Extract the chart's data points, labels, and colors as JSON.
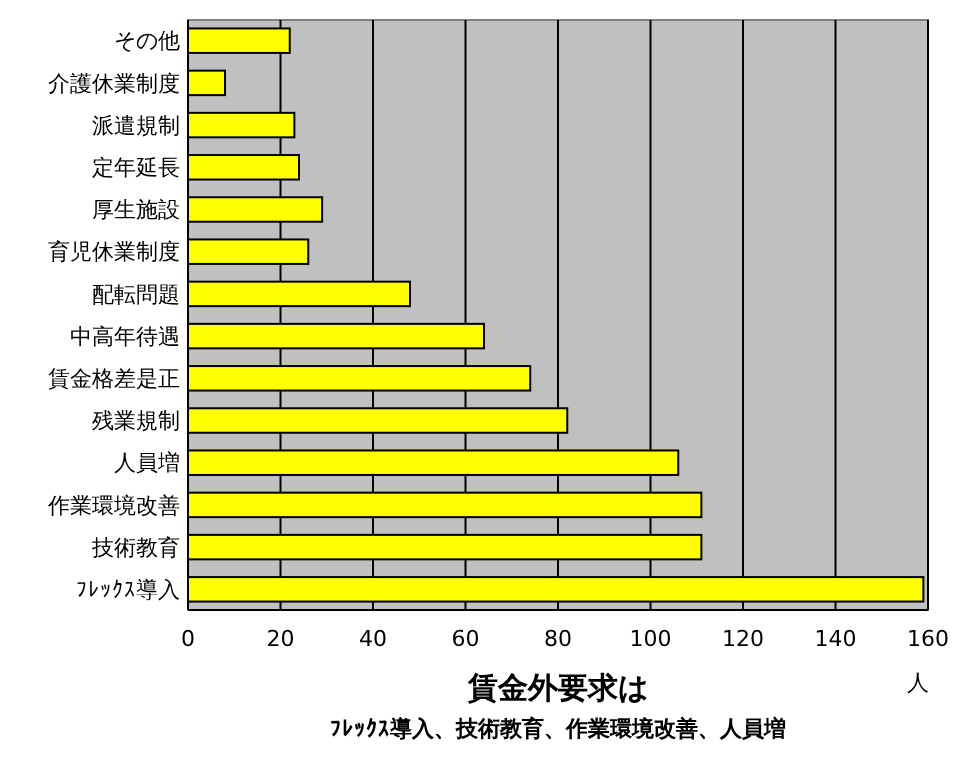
{
  "chart_data": {
    "type": "bar",
    "orientation": "horizontal",
    "title": "賃金外要求は",
    "subtitle": "ﾌﾚｯｸｽ導入、技術教育、作業環境改善、人員増",
    "xlabel": "人",
    "categories": [
      "その他",
      "介護休業制度",
      "派遣規制",
      "定年延長",
      "厚生施設",
      "育児休業制度",
      "配転問題",
      "中高年待遇",
      "賃金格差是正",
      "残業規制",
      "人員増",
      "作業環境改善",
      "技術教育",
      "ﾌﾚｯｸｽ導入"
    ],
    "values": [
      22,
      8,
      23,
      24,
      29,
      26,
      48,
      64,
      74,
      82,
      106,
      111,
      111,
      159
    ],
    "color": "#ffff00",
    "xlim": [
      0,
      160
    ],
    "xticks": [
      0,
      20,
      40,
      60,
      80,
      100,
      120,
      140,
      160
    ],
    "grid": "x"
  }
}
